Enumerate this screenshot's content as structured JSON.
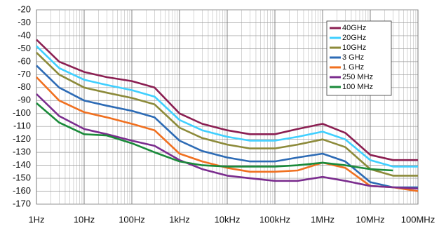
{
  "chart_data": {
    "type": "line",
    "log_x": true,
    "grid": true,
    "legend": "top-right",
    "x": [
      1,
      3,
      10,
      30,
      100,
      300,
      1000,
      3000,
      10000,
      30000,
      100000,
      300000,
      1000000,
      3000000,
      10000000,
      30000000,
      100000000
    ],
    "xlim": [
      1,
      100000000
    ],
    "xticks": [
      {
        "value": 1,
        "label": "1Hz"
      },
      {
        "value": 10,
        "label": "10Hz"
      },
      {
        "value": 100,
        "label": "100Hz"
      },
      {
        "value": 1000,
        "label": "1kHz"
      },
      {
        "value": 10000,
        "label": "10kHz"
      },
      {
        "value": 100000,
        "label": "100kHz"
      },
      {
        "value": 1000000,
        "label": "1MHz"
      },
      {
        "value": 10000000,
        "label": "10MHz"
      },
      {
        "value": 100000000,
        "label": "100MHz"
      }
    ],
    "ylim": [
      -170,
      -20
    ],
    "yticks": [
      -20,
      -30,
      -40,
      -50,
      -60,
      -70,
      -80,
      -90,
      -100,
      -110,
      -120,
      -130,
      -140,
      -150,
      -160,
      -170
    ],
    "series": [
      {
        "name": "40GHz",
        "color": "#8b1f52",
        "values": [
          -43,
          -60,
          -68,
          -72,
          -75,
          -80,
          -100,
          -108,
          -113,
          -116,
          -116,
          -112,
          -108,
          -115,
          -132,
          -136,
          -136
        ]
      },
      {
        "name": "20GHz",
        "color": "#3fcfff",
        "values": [
          -48,
          -65,
          -74,
          -78,
          -82,
          -87,
          -105,
          -113,
          -118,
          -121,
          -121,
          -118,
          -114,
          -120,
          -136,
          -141,
          -141
        ]
      },
      {
        "name": "10GHz",
        "color": "#8c8a3a",
        "values": [
          -53,
          -70,
          -80,
          -84,
          -88,
          -93,
          -111,
          -119,
          -124,
          -127,
          -127,
          -124,
          -120,
          -126,
          -143,
          -148,
          -148
        ]
      },
      {
        "name": "3 GHz",
        "color": "#2d6bb5",
        "values": [
          -63,
          -80,
          -90,
          -94,
          -98,
          -103,
          -121,
          -129,
          -134,
          -137,
          -137,
          -134,
          -131,
          -137,
          -153,
          -157,
          -157
        ]
      },
      {
        "name": "1 GHz",
        "color": "#f07020",
        "values": [
          -72,
          -90,
          -99,
          -103,
          -108,
          -113,
          -131,
          -137,
          -142,
          -145,
          -145,
          -144,
          -138,
          -142,
          -156,
          -157,
          -160
        ]
      },
      {
        "name": "250 MHz",
        "color": "#7b2d8e",
        "values": [
          -85,
          -102,
          -112,
          -116,
          -121,
          -125,
          -136,
          -143,
          -148,
          -150,
          -152,
          -152,
          -149,
          -152,
          -156,
          -157,
          -158
        ]
      },
      {
        "name": "100 MHz",
        "color": "#1a8a3a",
        "values": [
          -92,
          -107,
          -116,
          -117,
          -123,
          -130,
          -137,
          -140,
          -141,
          -141,
          -141,
          -140,
          -138,
          -140,
          -143,
          -144,
          null
        ]
      }
    ]
  }
}
